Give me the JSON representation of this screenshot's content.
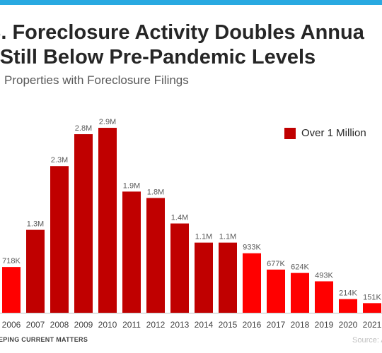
{
  "header": {
    "title_line1": "S. Foreclosure Activity Doubles Annua",
    "title_line2": "t Still Below Pre-Pandemic Levels",
    "subtitle": "Properties with Foreclosure Filings"
  },
  "legend": {
    "label": "Over 1 Million"
  },
  "footer": {
    "brand": "EPING CURRENT MATTERS",
    "source": "Source: A"
  },
  "colors": {
    "accent_stripe": "#29a9e1",
    "over_million": "#c00000",
    "under_million": "#ff0000",
    "axis": "#bfbfbf"
  },
  "chart_data": {
    "type": "bar",
    "title": "",
    "xlabel": "",
    "ylabel": "",
    "categories": [
      "2006",
      "2007",
      "2008",
      "2009",
      "2010",
      "2011",
      "2012",
      "2013",
      "2014",
      "2015",
      "2016",
      "2017",
      "2018",
      "2019",
      "2020",
      "2021"
    ],
    "values": [
      718000,
      1300000,
      2300000,
      2800000,
      2900000,
      1900000,
      1800000,
      1400000,
      1100000,
      1100000,
      933000,
      677000,
      624000,
      493000,
      214000,
      151000
    ],
    "value_labels": [
      "718K",
      "1.3M",
      "2.3M",
      "2.8M",
      "2.9M",
      "1.9M",
      "1.8M",
      "1.4M",
      "1.1M",
      "1.1M",
      "933K",
      "677K",
      "624K",
      "493K",
      "214K",
      "151K"
    ],
    "ylim": [
      0,
      3000000
    ],
    "grid": false,
    "legend_position": "top-right"
  }
}
